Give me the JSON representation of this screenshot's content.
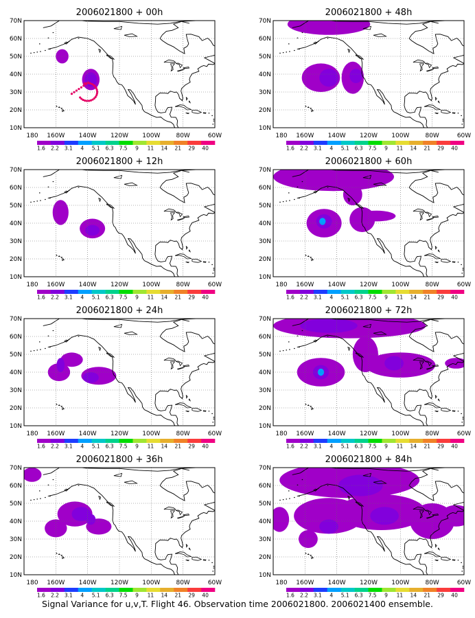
{
  "caption": "Signal Variance for u,v,T. Flight 46. Observation time 2006021800. 2006021400 ensemble.",
  "lat_labels": [
    "70N",
    "60N",
    "50N",
    "40N",
    "30N",
    "20N",
    "10N"
  ],
  "lon_labels": [
    "180",
    "160W",
    "140W",
    "120W",
    "100W",
    "80W",
    "60W"
  ],
  "colorbar": {
    "labels": [
      "1.6",
      "2.2",
      "3.1",
      "4",
      "5.1",
      "6.3",
      "7.5",
      "9",
      "11",
      "14",
      "21",
      "29",
      "40"
    ],
    "colors": [
      "#a000c8",
      "#8200dc",
      "#1e3cff",
      "#00a0ff",
      "#00c8c8",
      "#00d28c",
      "#00dc00",
      "#a0e632",
      "#e6dc32",
      "#e6af2d",
      "#f08228",
      "#fa3c3c",
      "#f00082"
    ]
  },
  "panels": [
    {
      "title": "2006021800 + 00h",
      "col": 0,
      "row": 0
    },
    {
      "title": "2006021800 + 12h",
      "col": 0,
      "row": 1
    },
    {
      "title": "2006021800 + 24h",
      "col": 0,
      "row": 2
    },
    {
      "title": "2006021800 + 36h",
      "col": 0,
      "row": 3
    },
    {
      "title": "2006021800 + 48h",
      "col": 1,
      "row": 0
    },
    {
      "title": "2006021800 + 60h",
      "col": 1,
      "row": 1
    },
    {
      "title": "2006021800 + 72h",
      "col": 1,
      "row": 2
    },
    {
      "title": "2006021800 + 84h",
      "col": 1,
      "row": 3
    }
  ],
  "map": {
    "lon_range": [
      -180,
      -60
    ],
    "lat_range": [
      10,
      70
    ],
    "grid": "dotted"
  }
}
